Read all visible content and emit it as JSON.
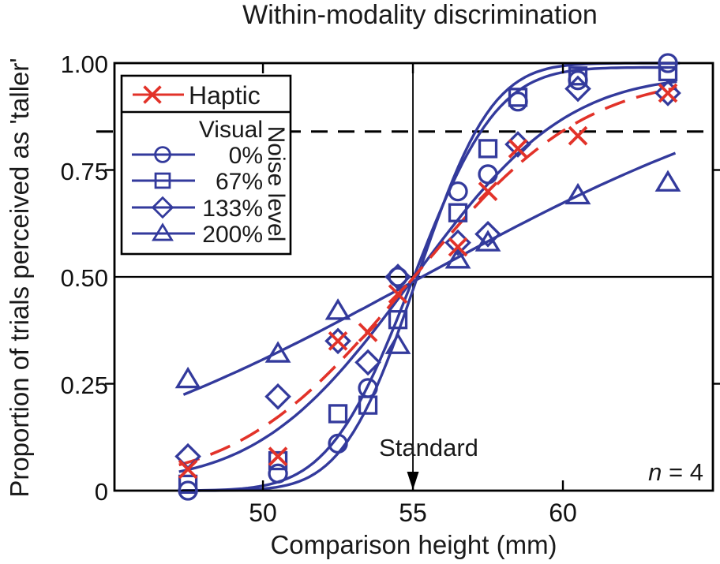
{
  "colors": {
    "blue": "#333a9c",
    "red": "#e23229",
    "axis": "#000000",
    "text": "#1a1a1a"
  },
  "chart_data": {
    "type": "scatter",
    "title": "Within-modality discrimination",
    "xlabel": "Comparison height (mm)",
    "ylabel": "Proportion of trials perceived as 'taller'",
    "xlim": [
      45.05,
      65.0
    ],
    "ylim": [
      0,
      1
    ],
    "grid": false,
    "x_ticks": [
      {
        "value": 50,
        "label": "50"
      },
      {
        "value": 55,
        "label": "55"
      },
      {
        "value": 60,
        "label": "60"
      }
    ],
    "y_ticks": [
      {
        "value": 1.0,
        "label": "1.00"
      },
      {
        "value": 0.75,
        "label": "0.75"
      },
      {
        "value": 0.5,
        "label": "0.50"
      },
      {
        "value": 0.25,
        "label": "0.25"
      },
      {
        "value": 0,
        "label": "0"
      }
    ],
    "reference_lines": {
      "dashed_y": 0.84,
      "solid_y": 0.5,
      "standard_x": 55
    },
    "annotations": {
      "standard": "Standard",
      "n_italic": "n",
      "n_rest": " = 4"
    },
    "legend": {
      "position": "top-left",
      "haptic": {
        "label": "Haptic",
        "marker": "x",
        "color": "red"
      },
      "visual_label": "Visual",
      "noise_axis_label": "Noise level",
      "items": [
        {
          "label": "0%",
          "marker": "circle"
        },
        {
          "label": "67%",
          "marker": "square"
        },
        {
          "label": "133%",
          "marker": "diamond"
        },
        {
          "label": "200%",
          "marker": "triangle"
        }
      ]
    },
    "series": [
      {
        "name": "Visual 0% noise",
        "legend_label": "0%",
        "marker": "circle",
        "color": "blue",
        "fit_style": "solid",
        "points": [
          [
            47.5,
            0.0
          ],
          [
            50.5,
            0.04
          ],
          [
            52.5,
            0.11
          ],
          [
            53.5,
            0.24
          ],
          [
            54.5,
            0.5
          ],
          [
            56.5,
            0.7
          ],
          [
            57.5,
            0.74
          ],
          [
            58.5,
            0.91
          ],
          [
            60.5,
            0.96
          ],
          [
            63.5,
            1.0
          ]
        ],
        "fit": {
          "mu": 55.15,
          "sigma": 1.95,
          "lo": 0,
          "hi": 1.0,
          "xmin": 47.3,
          "xmax": 63.9
        }
      },
      {
        "name": "Visual 67% noise",
        "legend_label": "67%",
        "marker": "square",
        "color": "blue",
        "fit_style": "solid",
        "points": [
          [
            47.5,
            0.015
          ],
          [
            50.5,
            0.07
          ],
          [
            52.5,
            0.18
          ],
          [
            53.5,
            0.2
          ],
          [
            54.5,
            0.4
          ],
          [
            56.5,
            0.65
          ],
          [
            57.5,
            0.8
          ],
          [
            58.5,
            0.92
          ],
          [
            60.5,
            0.97
          ],
          [
            63.5,
            0.98
          ]
        ],
        "fit": {
          "mu": 55.0,
          "sigma": 2.2,
          "lo": 0,
          "hi": 0.99,
          "xmin": 47.3,
          "xmax": 63.8
        }
      },
      {
        "name": "Visual 133% noise",
        "legend_label": "133%",
        "marker": "diamond",
        "color": "blue",
        "fit_style": "solid",
        "points": [
          [
            47.5,
            0.08
          ],
          [
            50.5,
            0.22
          ],
          [
            52.5,
            0.35
          ],
          [
            53.5,
            0.3
          ],
          [
            54.5,
            0.5
          ],
          [
            56.5,
            0.58
          ],
          [
            57.5,
            0.6
          ],
          [
            58.5,
            0.81
          ],
          [
            60.5,
            0.94
          ],
          [
            63.5,
            0.93
          ]
        ],
        "fit": {
          "mu": 55.0,
          "sigma": 4.0,
          "lo": 0.02,
          "hi": 0.97,
          "xmin": 47.2,
          "xmax": 63.8
        }
      },
      {
        "name": "Visual 200% noise",
        "legend_label": "200%",
        "marker": "triangle",
        "color": "blue",
        "fit_style": "solid",
        "points": [
          [
            47.5,
            0.26
          ],
          [
            50.5,
            0.32
          ],
          [
            52.5,
            0.42
          ],
          [
            54.5,
            0.34
          ],
          [
            56.5,
            0.54
          ],
          [
            57.5,
            0.58
          ],
          [
            60.5,
            0.69
          ],
          [
            63.5,
            0.72
          ]
        ],
        "fit": {
          "mu": 55.3,
          "sigma": 10.5,
          "lo": 0,
          "hi": 1.0,
          "xmin": 47.35,
          "xmax": 63.75
        }
      },
      {
        "name": "Haptic",
        "legend_label": "Haptic",
        "marker": "x",
        "color": "red",
        "fit_style": "dashed",
        "points": [
          [
            47.5,
            0.05
          ],
          [
            50.5,
            0.08
          ],
          [
            52.5,
            0.35
          ],
          [
            53.5,
            0.37
          ],
          [
            54.5,
            0.46
          ],
          [
            56.5,
            0.57
          ],
          [
            57.5,
            0.7
          ],
          [
            58.5,
            0.8
          ],
          [
            60.5,
            0.83
          ],
          [
            63.5,
            0.93
          ]
        ],
        "fit": {
          "mu": 54.95,
          "sigma": 4.5,
          "lo": 0.02,
          "hi": 0.965,
          "xmin": 47.2,
          "xmax": 63.8
        }
      }
    ],
    "n": 4
  }
}
